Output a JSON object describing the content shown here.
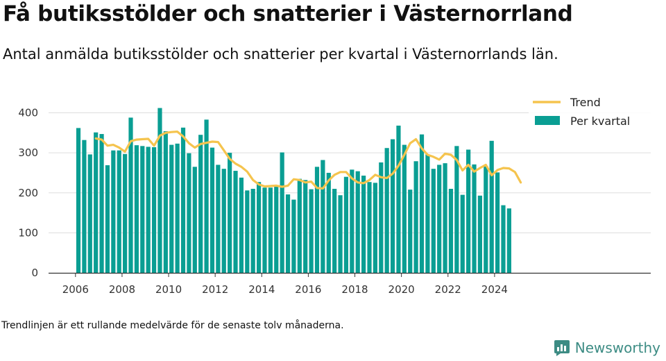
{
  "header": {
    "title": "Få butiksstölder och snatterier i Västernorrland",
    "subtitle": "Antal anmälda butiksstölder och snatterier per kvartal i Västernorrlands län."
  },
  "footer": {
    "note": "Trendlinjen är ett rullande medelvärde för de senaste tolv månaderna.",
    "brand": "Newsworthy"
  },
  "colors": {
    "bar": "#0a9e93",
    "trend": "#f5c44e",
    "grid": "#dddddd",
    "axis": "#333333",
    "brand": "#3d8c84"
  },
  "chart_data": {
    "type": "bar",
    "x_labels": [
      "2006",
      "2008",
      "2010",
      "2012",
      "2014",
      "2016",
      "2018",
      "2020",
      "2022",
      "2024"
    ],
    "y_ticks": [
      0,
      100,
      200,
      300,
      400
    ],
    "ylim": [
      0,
      430
    ],
    "start_year": 2006,
    "grid": true,
    "legend_position": "top-right",
    "series": [
      {
        "name": "Per kvartal",
        "type": "bar",
        "values": [
          362,
          332,
          296,
          351,
          347,
          269,
          306,
          306,
          297,
          388,
          319,
          317,
          315,
          314,
          412,
          354,
          320,
          323,
          363,
          299,
          265,
          345,
          383,
          313,
          270,
          260,
          300,
          255,
          238,
          206,
          210,
          227,
          213,
          213,
          216,
          301,
          196,
          183,
          235,
          232,
          209,
          265,
          282,
          250,
          210,
          194,
          240,
          258,
          254,
          243,
          227,
          225,
          276,
          312,
          334,
          368,
          320,
          208,
          279,
          346,
          296,
          260,
          270,
          274,
          210,
          317,
          195,
          308,
          271,
          193,
          267,
          330,
          251,
          169,
          161
        ]
      },
      {
        "name": "Trend",
        "type": "line",
        "x_start_index": 3,
        "values": [
          336,
          333,
          318,
          320,
          313,
          303,
          329,
          333,
          334,
          335,
          318,
          343,
          350,
          352,
          353,
          341,
          324,
          313,
          322,
          325,
          328,
          327,
          306,
          285,
          273,
          265,
          253,
          232,
          221,
          216,
          217,
          218,
          215,
          218,
          234,
          232,
          226,
          228,
          212,
          211,
          231,
          245,
          252,
          252,
          236,
          226,
          224,
          232,
          245,
          239,
          237,
          248,
          268,
          295,
          324,
          334,
          311,
          295,
          290,
          283,
          298,
          295,
          282,
          256,
          270,
          253,
          262,
          270,
          244,
          257,
          262,
          261,
          252,
          226
        ]
      }
    ]
  }
}
